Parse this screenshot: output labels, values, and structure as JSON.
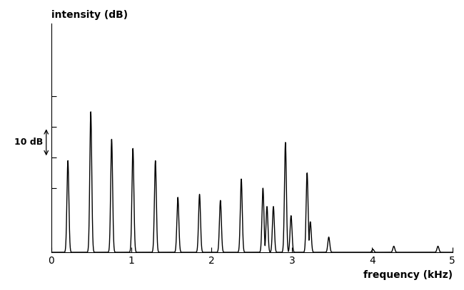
{
  "chart_data": {
    "type": "line",
    "x_label": "frequency (kHz)",
    "y_label": "intensity (dB)",
    "x": [
      0.21,
      0.495,
      0.755,
      1.02,
      1.3,
      1.58,
      1.85,
      2.11,
      2.37,
      2.64,
      2.69,
      2.77,
      2.92,
      2.99,
      3.19,
      3.23,
      3.46,
      4.01,
      4.27,
      4.82
    ],
    "values": [
      30,
      46,
      37,
      34,
      30,
      18,
      19,
      17,
      24,
      21,
      15,
      15,
      36,
      12,
      26,
      10,
      5,
      1,
      2,
      2
    ],
    "xlim": [
      0,
      5
    ],
    "xticks": [
      0,
      1,
      2,
      3,
      4,
      5
    ],
    "ylim": [
      0,
      75
    ],
    "yticks": [
      21,
      31,
      41,
      51
    ],
    "tick_labels": "x",
    "color": "#000000",
    "annotations": [
      {
        "text": "10 dB",
        "y0": 31,
        "y1": 41
      }
    ]
  }
}
